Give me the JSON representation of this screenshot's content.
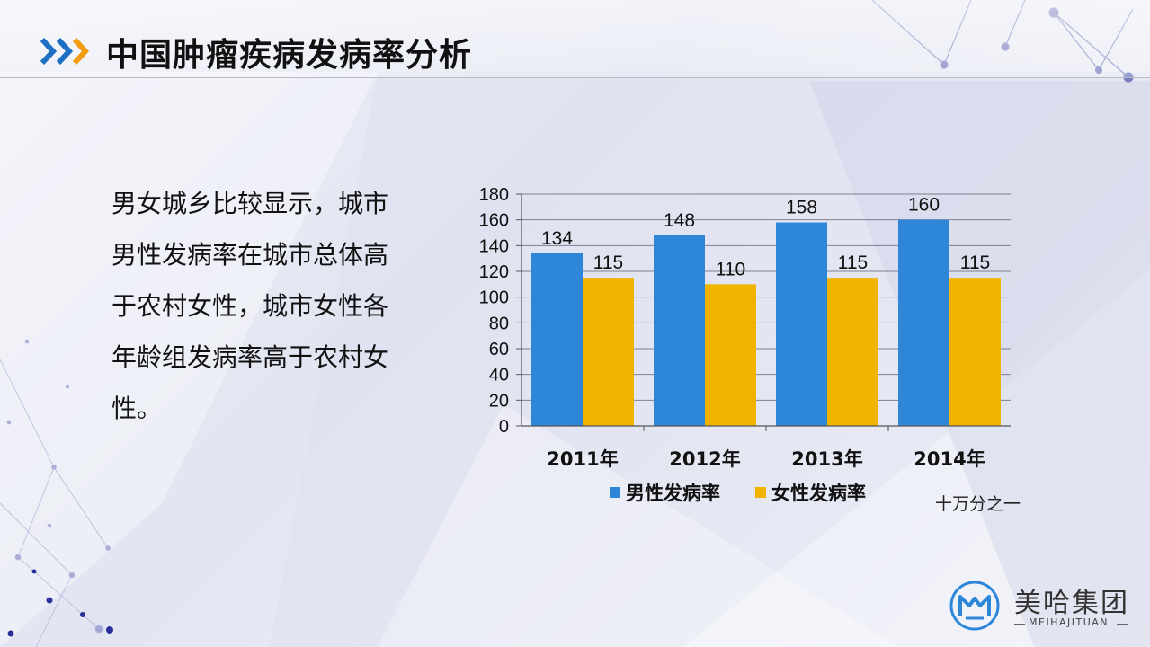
{
  "title": "中国肿瘤疾病发病率分析",
  "body_text": "男女城乡比较显示，城市男性发病率在城市总体高于农村女性，城市女性各年龄组发病率高于农村女性。",
  "unit_note": "十万分之一",
  "brand": {
    "name_cn": "美哈集团",
    "name_en": "MEIHAJITUAN"
  },
  "colors": {
    "male": "#2e86d8",
    "female": "#f0b400",
    "title_accent_blue": "#1d6fc4",
    "title_accent_orange": "#f39c12"
  },
  "chart_data": {
    "type": "bar",
    "categories": [
      "2011年",
      "2012年",
      "2013年",
      "2014年"
    ],
    "series": [
      {
        "name": "男性发病率",
        "values": [
          134,
          148,
          158,
          160
        ]
      },
      {
        "name": "女性发病率",
        "values": [
          115,
          110,
          115,
          115
        ]
      }
    ],
    "yticks": [
      0,
      20,
      40,
      60,
      80,
      100,
      120,
      140,
      160,
      180
    ],
    "ylim": [
      0,
      180
    ],
    "grid": true,
    "legend": "bottom",
    "data_labels": true
  }
}
